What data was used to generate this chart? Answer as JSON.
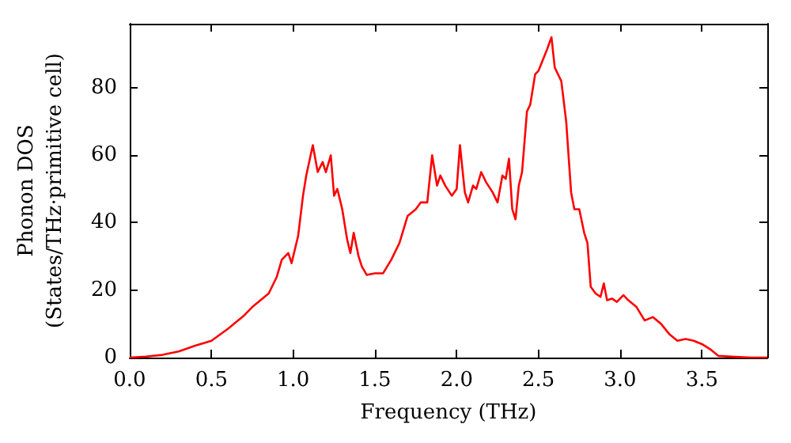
{
  "chart_data": {
    "type": "line",
    "xlabel": "Frequency (THz)",
    "ylabel": "Phonon DOS\n(States/THz·primitive cell)",
    "x": [
      0,
      0.1,
      0.2,
      0.3,
      0.4,
      0.5,
      0.6,
      0.7,
      0.75,
      0.8,
      0.85,
      0.9,
      0.93,
      0.97,
      0.99,
      1.03,
      1.06,
      1.08,
      1.12,
      1.15,
      1.18,
      1.2,
      1.23,
      1.25,
      1.27,
      1.3,
      1.33,
      1.35,
      1.37,
      1.4,
      1.42,
      1.45,
      1.5,
      1.55,
      1.6,
      1.65,
      1.7,
      1.75,
      1.78,
      1.82,
      1.85,
      1.88,
      1.9,
      1.93,
      1.97,
      2.0,
      2.02,
      2.05,
      2.07,
      2.1,
      2.12,
      2.15,
      2.18,
      2.22,
      2.25,
      2.28,
      2.3,
      2.32,
      2.34,
      2.36,
      2.38,
      2.4,
      2.43,
      2.45,
      2.48,
      2.5,
      2.55,
      2.58,
      2.6,
      2.64,
      2.67,
      2.7,
      2.72,
      2.75,
      2.78,
      2.8,
      2.82,
      2.85,
      2.88,
      2.9,
      2.92,
      2.95,
      2.98,
      3.02,
      3.05,
      3.1,
      3.15,
      3.2,
      3.25,
      3.3,
      3.35,
      3.4,
      3.45,
      3.5,
      3.55,
      3.6,
      3.7,
      3.8,
      3.9
    ],
    "series": [
      {
        "color": "#ff0000",
        "values": [
          0,
          0.3,
          0.8,
          1.8,
          3.5,
          5,
          8.5,
          12.5,
          15,
          17,
          19,
          24,
          29,
          31,
          28,
          36,
          48,
          54,
          63,
          55,
          58,
          55,
          60,
          48,
          50,
          44,
          35,
          31,
          37,
          30,
          27,
          24.5,
          25,
          25,
          29,
          34,
          42,
          44,
          46,
          46,
          60,
          51,
          54,
          51,
          48,
          50,
          63,
          49,
          46,
          51,
          50,
          55,
          52,
          49,
          46,
          54,
          53,
          59,
          44,
          41,
          51,
          55,
          73,
          75,
          84,
          85,
          91,
          95,
          86,
          82,
          70,
          49,
          44,
          44,
          37,
          34,
          21,
          19,
          18,
          22,
          17,
          17.5,
          16.5,
          18.5,
          17,
          15,
          11,
          12,
          10,
          7,
          5,
          5.5,
          5,
          4,
          2.5,
          0.5,
          0.2,
          0,
          0
        ]
      }
    ],
    "xlim": [
      0,
      3.9
    ],
    "ylim": [
      0,
      99
    ],
    "xticks": [
      {
        "value": 0,
        "label": "0.0"
      },
      {
        "value": 0.5,
        "label": "0.5"
      },
      {
        "value": 1,
        "label": "1.0"
      },
      {
        "value": 1.5,
        "label": "1.5"
      },
      {
        "value": 2,
        "label": "2.0"
      },
      {
        "value": 2.5,
        "label": "2.5"
      },
      {
        "value": 3,
        "label": "3.0"
      },
      {
        "value": 3.5,
        "label": "3.5"
      }
    ],
    "yticks": [
      0,
      20,
      40,
      60,
      80
    ],
    "grid": false,
    "marker": "none",
    "line_style": "solid"
  }
}
